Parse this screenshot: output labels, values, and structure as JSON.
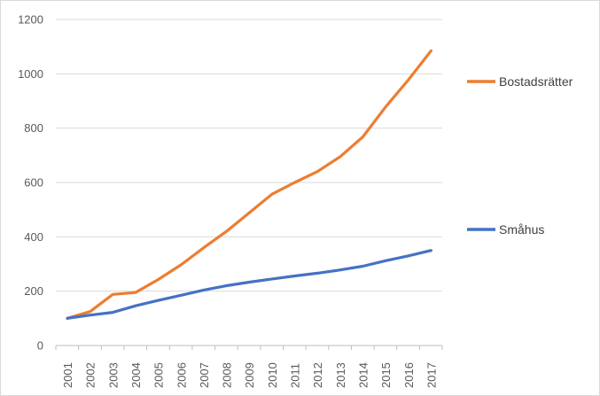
{
  "chart_data": {
    "type": "line",
    "x": [
      "2001",
      "2002",
      "2003",
      "2004",
      "2005",
      "2006",
      "2007",
      "2008",
      "2009",
      "2010",
      "2011",
      "2012",
      "2013",
      "2014",
      "2015",
      "2016",
      "2017"
    ],
    "ylim": [
      0,
      1200
    ],
    "yticks": [
      0,
      200,
      400,
      600,
      800,
      1000,
      1200
    ],
    "grid": true,
    "legend_position": "right",
    "series": [
      {
        "name": "Bostadsrätter",
        "color": "#ED7D31",
        "values": [
          100,
          125,
          188,
          195,
          243,
          297,
          360,
          420,
          488,
          557,
          600,
          640,
          695,
          768,
          878,
          978,
          1085
        ]
      },
      {
        "name": "Småhus",
        "color": "#4472C4",
        "values": [
          100,
          112,
          122,
          146,
          166,
          185,
          204,
          220,
          233,
          245,
          256,
          266,
          278,
          292,
          312,
          330,
          350
        ]
      }
    ]
  }
}
